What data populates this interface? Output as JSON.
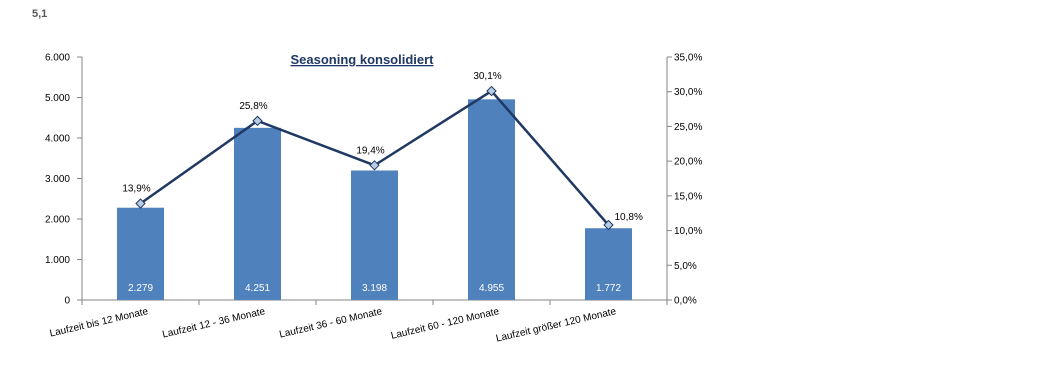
{
  "page": {
    "number": "5,1"
  },
  "chart_data": {
    "type": "bar",
    "title": "Seasoning konsolidiert",
    "categories": [
      "Laufzeit bis 12 Monate",
      "Laufzeit 12 - 36 Monate",
      "Laufzeit 36 - 60 Monate",
      "Laufzeit 60 - 120 Monate",
      "Laufzeit größer 120 Monate"
    ],
    "series": [
      {
        "type": "bar",
        "axis": "left",
        "values": [
          2279,
          4251,
          3198,
          4955,
          1772
        ],
        "value_labels": [
          "2.279",
          "4.251",
          "3.198",
          "4.955",
          "1.772"
        ],
        "color": "#4f81bd"
      },
      {
        "type": "line",
        "axis": "right",
        "values": [
          13.9,
          25.8,
          19.4,
          30.1,
          10.8
        ],
        "value_labels": [
          "13,9%",
          "25,8%",
          "19,4%",
          "30,1%",
          "10,8%"
        ],
        "color": "#1f3864",
        "marker_fill": "#b8cce4"
      }
    ],
    "y_left": {
      "ylim": [
        0,
        6000
      ],
      "ticks": [
        0,
        1000,
        2000,
        3000,
        4000,
        5000,
        6000
      ],
      "tick_labels": [
        "0",
        "1.000",
        "2.000",
        "3.000",
        "4.000",
        "5.000",
        "6.000"
      ]
    },
    "y_right": {
      "ylim": [
        0,
        35
      ],
      "ticks": [
        0,
        5,
        10,
        15,
        20,
        25,
        30,
        35
      ],
      "tick_labels": [
        "0,0%",
        "5,0%",
        "10,0%",
        "15,0%",
        "20,0%",
        "25,0%",
        "30,0%",
        "35,0%"
      ]
    },
    "grid": false,
    "legend": "none"
  }
}
